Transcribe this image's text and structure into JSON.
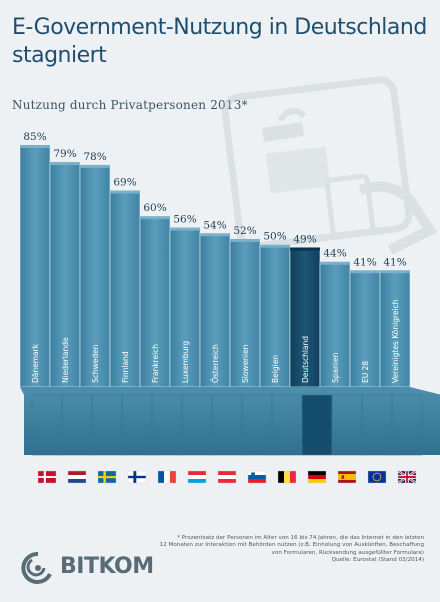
{
  "header": {
    "title": "E-Government-Nutzung in Deutschland stagniert",
    "subtitle": "Nutzung durch Privatpersonen 2013*"
  },
  "chart_data": {
    "type": "bar",
    "categories": [
      "Dänemark",
      "Niederlande",
      "Schweden",
      "Finnland",
      "Frankreich",
      "Luxemburg",
      "Österreich",
      "Slowenien",
      "Belgien",
      "Deutschland",
      "Spanien",
      "EU 28",
      "Vereinigtes Königreich"
    ],
    "values": [
      85,
      79,
      78,
      69,
      60,
      56,
      54,
      52,
      50,
      49,
      44,
      41,
      41
    ],
    "value_labels": [
      "85%",
      "79%",
      "78%",
      "69%",
      "60%",
      "56%",
      "54%",
      "52%",
      "50%",
      "49%",
      "44%",
      "41%",
      "41%"
    ],
    "title": "Nutzung durch Privatpersonen 2013*",
    "ylim": [
      0,
      100
    ],
    "highlight": "Deutschland",
    "colors": {
      "bar": "#4d8fae",
      "bar_light": "#7fb6cf",
      "highlight": "#154d6e",
      "label": "#1e3d52",
      "background": "#eef1f3"
    }
  },
  "flags": [
    "flag-denmark",
    "flag-netherlands",
    "flag-sweden",
    "flag-finland",
    "flag-france",
    "flag-luxembourg",
    "flag-austria",
    "flag-slovenia",
    "flag-belgium",
    "flag-germany",
    "flag-spain",
    "flag-eu",
    "flag-united-kingdom"
  ],
  "footnote": {
    "lines": [
      "* Prozentsatz der Personen im Alter von 16 bis 74 Jahren, die das Internet in den letzten",
      "12 Monaten zur Interaktion mit Behörden nutzen (z.B. Einholung von Auskünften, Beschaffung",
      "von Formularen, Rücksendung  ausgefüllter Formulare)",
      "Quelle: Eurostat (Stand 03/2014)"
    ]
  },
  "logo": {
    "text": "BITKOM"
  }
}
